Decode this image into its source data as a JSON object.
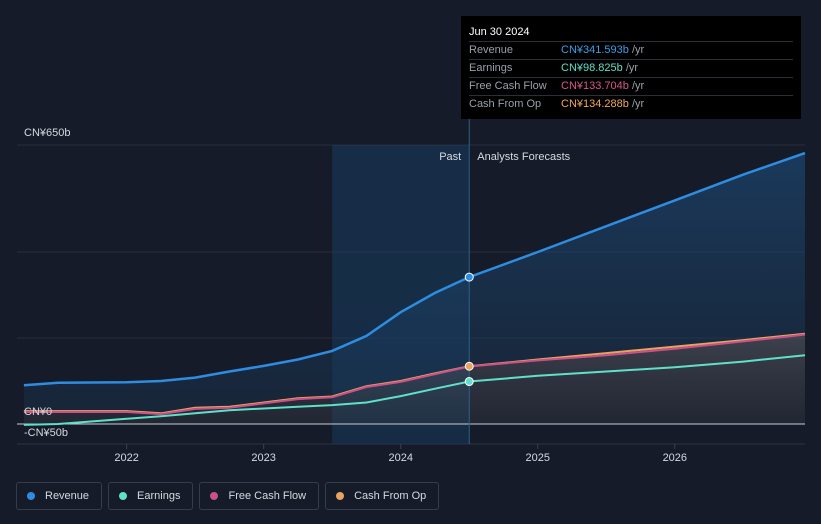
{
  "tooltip": {
    "date": "Jun 30 2024",
    "rows": [
      {
        "name": "Revenue",
        "value": "CN¥341.593b",
        "unit": "/yr",
        "color": "#3b9ee8"
      },
      {
        "name": "Earnings",
        "value": "CN¥98.825b",
        "unit": "/yr",
        "color": "#5fe0c8"
      },
      {
        "name": "Free Cash Flow",
        "value": "CN¥133.704b",
        "unit": "/yr",
        "color": "#d6588a"
      },
      {
        "name": "Cash From Op",
        "value": "CN¥134.288b",
        "unit": "/yr",
        "color": "#f0a95c"
      }
    ]
  },
  "labels": {
    "past": "Past",
    "forecast": "Analysts Forecasts"
  },
  "legend": [
    {
      "name": "Revenue",
      "color": "#2e8de0"
    },
    {
      "name": "Earnings",
      "color": "#5fe0c8"
    },
    {
      "name": "Free Cash Flow",
      "color": "#c9508a"
    },
    {
      "name": "Cash From Op",
      "color": "#e8a45c"
    }
  ],
  "chart_data": {
    "type": "area",
    "ylabels": [
      "CN¥650b",
      "CN¥0",
      "-CN¥50b"
    ],
    "ylim": [
      -50,
      650
    ],
    "xlim": [
      2021.2,
      2026.95
    ],
    "xticks": [
      2022,
      2023,
      2024,
      2025,
      2026
    ],
    "xtick_labels": [
      "2022",
      "2023",
      "2024",
      "2025",
      "2026"
    ],
    "highlight_range": [
      2023.5,
      2024.5
    ],
    "divider_x": 2024.5,
    "series": [
      {
        "name": "Revenue",
        "color": "#2e8de0",
        "points": [
          [
            2021.25,
            90
          ],
          [
            2021.5,
            96
          ],
          [
            2022,
            97
          ],
          [
            2022.25,
            100
          ],
          [
            2022.5,
            108
          ],
          [
            2022.75,
            122
          ],
          [
            2023,
            135
          ],
          [
            2023.25,
            150
          ],
          [
            2023.5,
            170
          ],
          [
            2023.75,
            205
          ],
          [
            2024,
            260
          ],
          [
            2024.25,
            305
          ],
          [
            2024.5,
            341.6
          ],
          [
            2025,
            400
          ],
          [
            2025.5,
            460
          ],
          [
            2026,
            520
          ],
          [
            2026.5,
            580
          ],
          [
            2026.95,
            630
          ]
        ]
      },
      {
        "name": "Cash From Op",
        "color": "#e8a45c",
        "points": [
          [
            2021.25,
            30
          ],
          [
            2021.5,
            30
          ],
          [
            2022,
            30
          ],
          [
            2022.25,
            25
          ],
          [
            2022.5,
            38
          ],
          [
            2022.75,
            40
          ],
          [
            2023,
            50
          ],
          [
            2023.25,
            60
          ],
          [
            2023.5,
            64
          ],
          [
            2023.75,
            88
          ],
          [
            2024,
            100
          ],
          [
            2024.25,
            118
          ],
          [
            2024.5,
            134.3
          ],
          [
            2025,
            150
          ],
          [
            2025.5,
            165
          ],
          [
            2026,
            180
          ],
          [
            2026.5,
            195
          ],
          [
            2026.95,
            210
          ]
        ]
      },
      {
        "name": "Free Cash Flow",
        "color": "#c9508a",
        "points": [
          [
            2021.25,
            28
          ],
          [
            2021.5,
            28
          ],
          [
            2022,
            28
          ],
          [
            2022.25,
            23
          ],
          [
            2022.5,
            35
          ],
          [
            2022.75,
            38
          ],
          [
            2023,
            48
          ],
          [
            2023.25,
            58
          ],
          [
            2023.5,
            62
          ],
          [
            2023.75,
            86
          ],
          [
            2024,
            98
          ],
          [
            2024.25,
            116
          ],
          [
            2024.5,
            133.7
          ],
          [
            2025,
            148
          ],
          [
            2025.5,
            160
          ],
          [
            2026,
            175
          ],
          [
            2026.5,
            192
          ],
          [
            2026.95,
            208
          ]
        ]
      },
      {
        "name": "Earnings",
        "color": "#5fe0c8",
        "points": [
          [
            2021.25,
            -2
          ],
          [
            2021.5,
            0
          ],
          [
            2022,
            12
          ],
          [
            2022.25,
            18
          ],
          [
            2022.5,
            25
          ],
          [
            2022.75,
            32
          ],
          [
            2023,
            36
          ],
          [
            2023.25,
            40
          ],
          [
            2023.5,
            44
          ],
          [
            2023.75,
            50
          ],
          [
            2024,
            65
          ],
          [
            2024.25,
            82
          ],
          [
            2024.5,
            98.8
          ],
          [
            2025,
            112
          ],
          [
            2025.5,
            122
          ],
          [
            2026,
            132
          ],
          [
            2026.5,
            145
          ],
          [
            2026.95,
            160
          ]
        ]
      }
    ]
  }
}
